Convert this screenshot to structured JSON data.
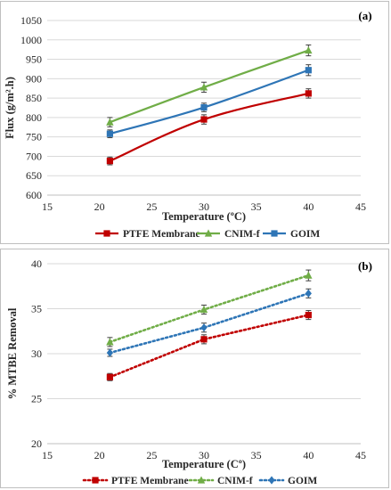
{
  "chart_data": [
    {
      "type": "line",
      "panel_label": "(a)",
      "xlabel": "Temperature (ºC)",
      "ylabel": "Flux (g/m².h)",
      "xlim": [
        15,
        45
      ],
      "ylim": [
        600,
        1050
      ],
      "xticks": [
        15,
        20,
        25,
        30,
        35,
        40,
        45
      ],
      "yticks": [
        600,
        650,
        700,
        750,
        800,
        850,
        900,
        950,
        1000,
        1050
      ],
      "grid": "horizontal",
      "legend_position": "bottom",
      "x": [
        21,
        30,
        40
      ],
      "series": [
        {
          "name": "PTFE Membrane",
          "color": "#c00000",
          "marker": "square",
          "line": "solid",
          "values": [
            688,
            795,
            862
          ],
          "errors": [
            10,
            12,
            12
          ]
        },
        {
          "name": "CNIM-f",
          "color": "#70ad47",
          "marker": "triangle",
          "line": "solid",
          "values": [
            788,
            878,
            973
          ],
          "errors": [
            12,
            13,
            14
          ]
        },
        {
          "name": "GOIM",
          "color": "#2e75b6",
          "marker": "square",
          "line": "solid",
          "values": [
            758,
            826,
            922
          ],
          "errors": [
            10,
            11,
            14
          ]
        }
      ]
    },
    {
      "type": "line",
      "panel_label": "(b)",
      "xlabel": "Temperature (Cº)",
      "ylabel": "% MTBE Removal",
      "xlim": [
        15,
        45
      ],
      "ylim": [
        20,
        40
      ],
      "xticks": [
        15,
        20,
        25,
        30,
        35,
        40,
        45
      ],
      "yticks": [
        20,
        25,
        30,
        35,
        40
      ],
      "grid": "horizontal",
      "legend_position": "bottom",
      "x": [
        21,
        30,
        40
      ],
      "series": [
        {
          "name": "PTFE Membrane",
          "color": "#c00000",
          "marker": "square",
          "line": "dotted",
          "values": [
            27.4,
            31.6,
            34.3
          ],
          "errors": [
            0.4,
            0.5,
            0.5
          ]
        },
        {
          "name": "CNIM-f",
          "color": "#70ad47",
          "marker": "triangle",
          "line": "dotted",
          "values": [
            31.3,
            34.9,
            38.7
          ],
          "errors": [
            0.5,
            0.5,
            0.6
          ]
        },
        {
          "name": "GOIM",
          "color": "#2e75b6",
          "marker": "diamond",
          "line": "dotted",
          "values": [
            30.1,
            32.9,
            36.7
          ],
          "errors": [
            0.4,
            0.5,
            0.5
          ]
        }
      ]
    }
  ]
}
